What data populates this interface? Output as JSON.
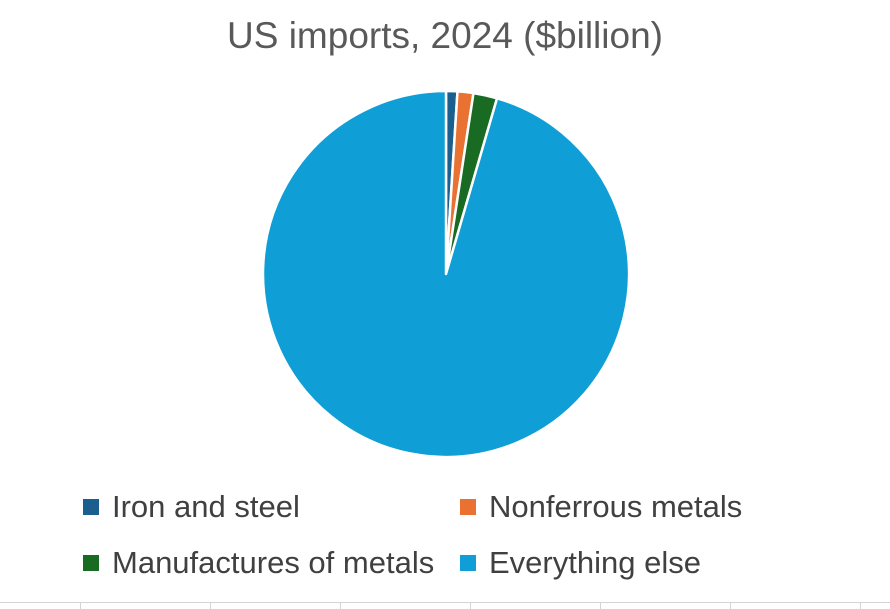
{
  "chart_data": {
    "type": "pie",
    "title": "US imports, 2024 ($billion)",
    "legend_position": "bottom",
    "series": [
      {
        "name": "Iron and steel",
        "value": 1.0,
        "color": "#1a5f8e"
      },
      {
        "name": "Nonferrous metals",
        "value": 1.4,
        "color": "#e97132"
      },
      {
        "name": "Manufactures of metals",
        "value": 2.1,
        "color": "#196b24"
      },
      {
        "name": "Everything else",
        "value": 95.5,
        "color": "#0f9ed5"
      }
    ]
  }
}
